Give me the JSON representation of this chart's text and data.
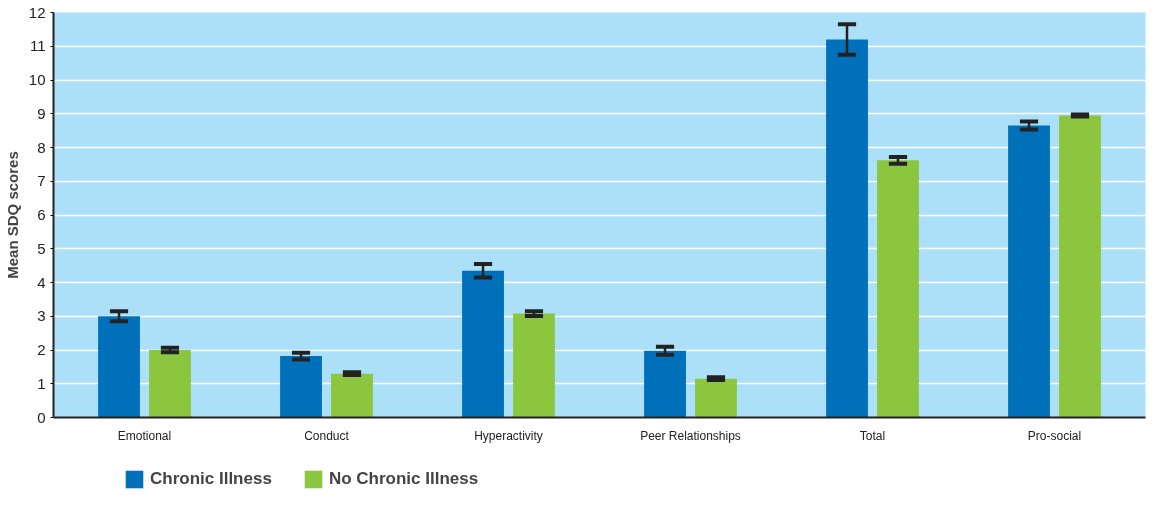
{
  "chart_data": {
    "type": "bar",
    "ylabel": "Mean SDQ scores",
    "categories": [
      "Emotional",
      "Conduct",
      "Hyperactivity",
      "Peer Relationships",
      "Total",
      "Pro-social"
    ],
    "series": [
      {
        "name": "Chronic Illness",
        "color": "#0070ba",
        "values": [
          3.0,
          1.82,
          4.35,
          1.98,
          11.2,
          8.65
        ],
        "errors": [
          0.15,
          0.1,
          0.2,
          0.12,
          0.45,
          0.12
        ]
      },
      {
        "name": "No Chronic Illness",
        "color": "#8cc63f",
        "values": [
          2.0,
          1.3,
          3.08,
          1.15,
          7.62,
          8.95
        ],
        "errors": [
          0.07,
          0.04,
          0.07,
          0.04,
          0.1,
          0.03
        ]
      }
    ],
    "ylim": [
      0,
      12
    ],
    "yticks": [
      0,
      1,
      2,
      3,
      4,
      5,
      6,
      7,
      8,
      9,
      10,
      11,
      12
    ],
    "grid": "y",
    "legend": "bottom left"
  }
}
